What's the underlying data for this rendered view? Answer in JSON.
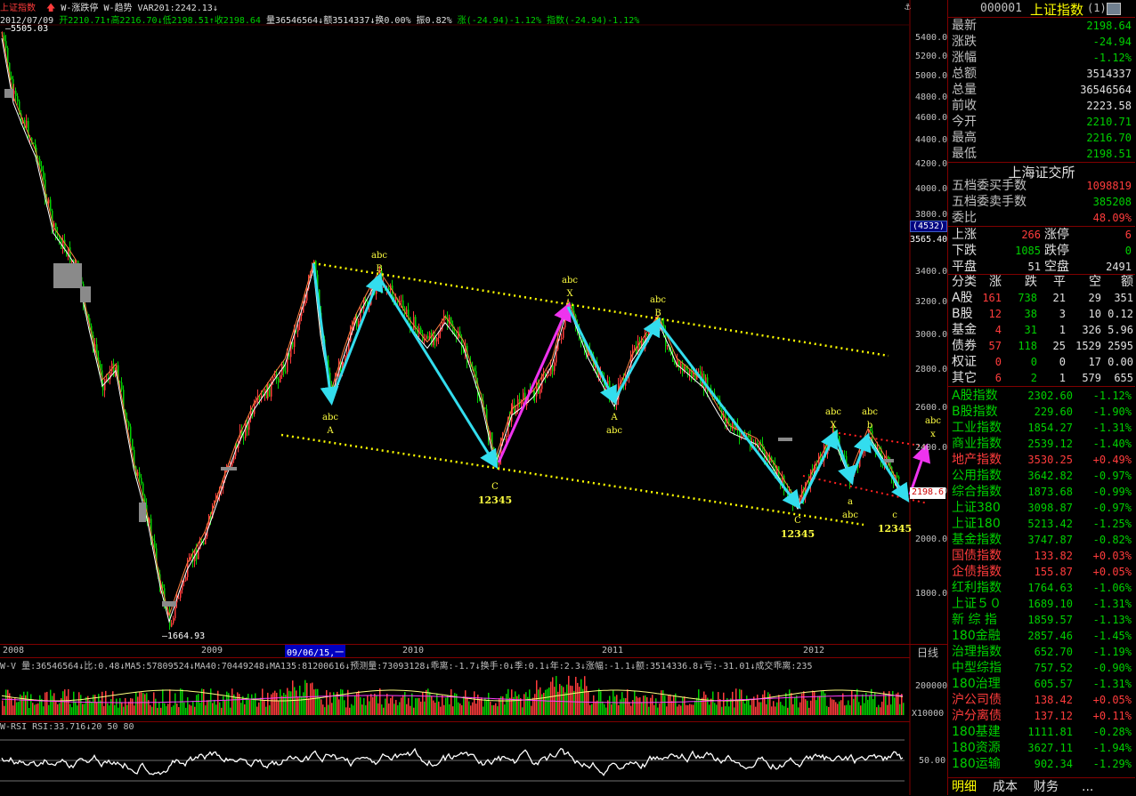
{
  "title_bar": {
    "index_name": "上证指数",
    "indicator1": "W-涨跌停",
    "indicator2": "W-趋势",
    "var_label": "VAR201:2242.13",
    "down_arrow": "↓"
  },
  "ohlc": {
    "date": "2012/07/09",
    "open": "开2210.71",
    "high": "高2216.70",
    "low": "低2198.51",
    "close": "收2198.64",
    "volume": "量36546564",
    "amount": "额3514337",
    "turnover": "换0.00%",
    "amplitude": "振0.82%",
    "change": "涨(-24.94)-1.12%",
    "index_change": "指数(-24.94)-1.12%"
  },
  "price_axis": {
    "labels": [
      "5400.0",
      "5200.0",
      "5000.0",
      "4800.0",
      "4600.0",
      "4400.0",
      "4200.0",
      "4000.0",
      "3800.0",
      "3400.0",
      "3200.0",
      "3000.0",
      "2800.0",
      "2600.0",
      "2400.0",
      "2200.0",
      "2000.0",
      "1800.0"
    ],
    "cursor_box": "(4532)",
    "cursor_value": "3565.40",
    "last_price_tag": "2198.6"
  },
  "chart_marks": {
    "high_label": "5505.03",
    "low_label": "1664.93",
    "wave_labels": [
      {
        "top": "abc",
        "bottom": "A"
      },
      {
        "top": "abc",
        "bottom": "B"
      },
      {
        "top": "C",
        "bottom": "12345"
      },
      {
        "top": "abc",
        "bottom": "X"
      },
      {
        "top": "A",
        "bottom": "abc"
      },
      {
        "top": "abc",
        "bottom": "B"
      },
      {
        "top": "C",
        "bottom": "12345"
      },
      {
        "top": "abc",
        "bottom": "X"
      },
      {
        "top": "a",
        "bottom": "abc"
      },
      {
        "top": "abc",
        "bottom": "b"
      },
      {
        "top": "c",
        "bottom": "12345"
      },
      {
        "top": "abc",
        "bottom": "x"
      }
    ]
  },
  "time_axis": {
    "labels": [
      "2008",
      "2009",
      "09/06/15,一",
      "2010",
      "2011",
      "2012"
    ],
    "period": "日线"
  },
  "volume_panel": {
    "header": "W-V 量:36546564↓比:0.48↓MA5:57809524↓MA40:70449248↓MA135:81200616↓预测量:73093128↓乖离:-1.7↓换手:0↓季:0.1↓年:2.3↓涨幅:-1.1↓额:3514336.8↓亏:-31.01↓成交乖离:235",
    "axis_value": "200000",
    "axis_unit": "X10000"
  },
  "rsi_panel": {
    "header": "W-RSI RSI:33.716↓20 50 80",
    "axis_value": "50.00"
  },
  "sidebar": {
    "code": "000001",
    "name": "上证指数",
    "suffix": "(1)",
    "quote": [
      {
        "label": "最新",
        "value": "2198.64",
        "color": "green"
      },
      {
        "label": "涨跌",
        "value": "-24.94",
        "color": "green"
      },
      {
        "label": "涨幅",
        "value": "-1.12%",
        "color": "green"
      },
      {
        "label": "总额",
        "value": "3514337",
        "color": "white"
      },
      {
        "label": "总量",
        "value": "36546564",
        "color": "white"
      },
      {
        "label": "前收",
        "value": "2223.58",
        "color": "white"
      },
      {
        "label": "今开",
        "value": "2210.71",
        "color": "green"
      },
      {
        "label": "最高",
        "value": "2216.70",
        "color": "green"
      },
      {
        "label": "最低",
        "value": "2198.51",
        "color": "green"
      }
    ],
    "exchange": "上海证交所",
    "orders": [
      {
        "label": "五档委买手数",
        "value": "1098819",
        "color": "red"
      },
      {
        "label": "五档委卖手数",
        "value": "385208",
        "color": "green"
      },
      {
        "label": "委比",
        "value": "48.09%",
        "color": "red"
      }
    ],
    "breadth": [
      {
        "l1": "上涨",
        "v1": "266",
        "c1": "red",
        "l2": "涨停",
        "v2": "6",
        "c2": "red"
      },
      {
        "l1": "下跌",
        "v1": "1085",
        "c1": "green",
        "l2": "跌停",
        "v2": "0",
        "c2": "green"
      },
      {
        "l1": "平盘",
        "v1": "51",
        "c1": "white",
        "l2": "空盘",
        "v2": "2491",
        "c2": "white"
      }
    ],
    "cat_header": [
      "分类",
      "涨",
      "跌",
      "平",
      "空",
      "额"
    ],
    "cat_rows": [
      {
        "name": "A股",
        "up": "161",
        "down": "738",
        "flat": "21",
        "empty": "29",
        "amt": "351"
      },
      {
        "name": "B股",
        "up": "12",
        "down": "38",
        "flat": "3",
        "empty": "10",
        "amt": "0.12"
      },
      {
        "name": "基金",
        "up": "4",
        "down": "31",
        "flat": "1",
        "empty": "326",
        "amt": "5.96"
      },
      {
        "name": "债券",
        "up": "57",
        "down": "118",
        "flat": "25",
        "empty": "1529",
        "amt": "2595"
      },
      {
        "name": "权证",
        "up": "0",
        "down": "0",
        "flat": "0",
        "empty": "17",
        "amt": "0.00"
      },
      {
        "name": "其它",
        "up": "6",
        "down": "2",
        "flat": "1",
        "empty": "579",
        "amt": "655"
      }
    ],
    "indices": [
      {
        "name": "A股指数",
        "value": "2302.60",
        "pct": "-1.12%",
        "color": "green"
      },
      {
        "name": "B股指数",
        "value": "229.60",
        "pct": "-1.90%",
        "color": "green"
      },
      {
        "name": "工业指数",
        "value": "1854.27",
        "pct": "-1.31%",
        "color": "green"
      },
      {
        "name": "商业指数",
        "value": "2539.12",
        "pct": "-1.40%",
        "color": "green"
      },
      {
        "name": "地产指数",
        "value": "3530.25",
        "pct": "+0.49%",
        "color": "red"
      },
      {
        "name": "公用指数",
        "value": "3642.82",
        "pct": "-0.97%",
        "color": "green"
      },
      {
        "name": "综合指数",
        "value": "1873.68",
        "pct": "-0.99%",
        "color": "green"
      },
      {
        "name": "上证380",
        "value": "3098.87",
        "pct": "-0.97%",
        "color": "green"
      },
      {
        "name": "上证180",
        "value": "5213.42",
        "pct": "-1.25%",
        "color": "green"
      },
      {
        "name": "基金指数",
        "value": "3747.87",
        "pct": "-0.82%",
        "color": "green"
      },
      {
        "name": "国债指数",
        "value": "133.82",
        "pct": "+0.03%",
        "color": "red"
      },
      {
        "name": "企债指数",
        "value": "155.87",
        "pct": "+0.05%",
        "color": "red"
      },
      {
        "name": "红利指数",
        "value": "1764.63",
        "pct": "-1.06%",
        "color": "green"
      },
      {
        "name": "上证５０",
        "value": "1689.10",
        "pct": "-1.31%",
        "color": "green"
      },
      {
        "name": "新 综 指",
        "value": "1859.57",
        "pct": "-1.13%",
        "color": "green"
      },
      {
        "name": "180金融",
        "value": "2857.46",
        "pct": "-1.45%",
        "color": "green"
      },
      {
        "name": "治理指数",
        "value": "652.70",
        "pct": "-1.19%",
        "color": "green"
      },
      {
        "name": "中型综指",
        "value": "757.52",
        "pct": "-0.90%",
        "color": "green"
      },
      {
        "name": "180治理",
        "value": "605.57",
        "pct": "-1.31%",
        "color": "green"
      },
      {
        "name": "沪公司债",
        "value": "138.42",
        "pct": "+0.05%",
        "color": "red"
      },
      {
        "name": "沪分离债",
        "value": "137.12",
        "pct": "+0.11%",
        "color": "red"
      },
      {
        "name": "180基建",
        "value": "1111.81",
        "pct": "-0.28%",
        "color": "green"
      },
      {
        "name": "180资源",
        "value": "3627.11",
        "pct": "-1.94%",
        "color": "green"
      },
      {
        "name": "180运输",
        "value": "902.34",
        "pct": "-1.29%",
        "color": "green"
      }
    ],
    "tabs": [
      "明细",
      "成本",
      "财务",
      "..."
    ]
  },
  "colors": {
    "up": "#ff3c3c",
    "down": "#00d000",
    "wave": "#33ddee",
    "wave_up": "#ee33ee",
    "channel": "#ffff00"
  }
}
